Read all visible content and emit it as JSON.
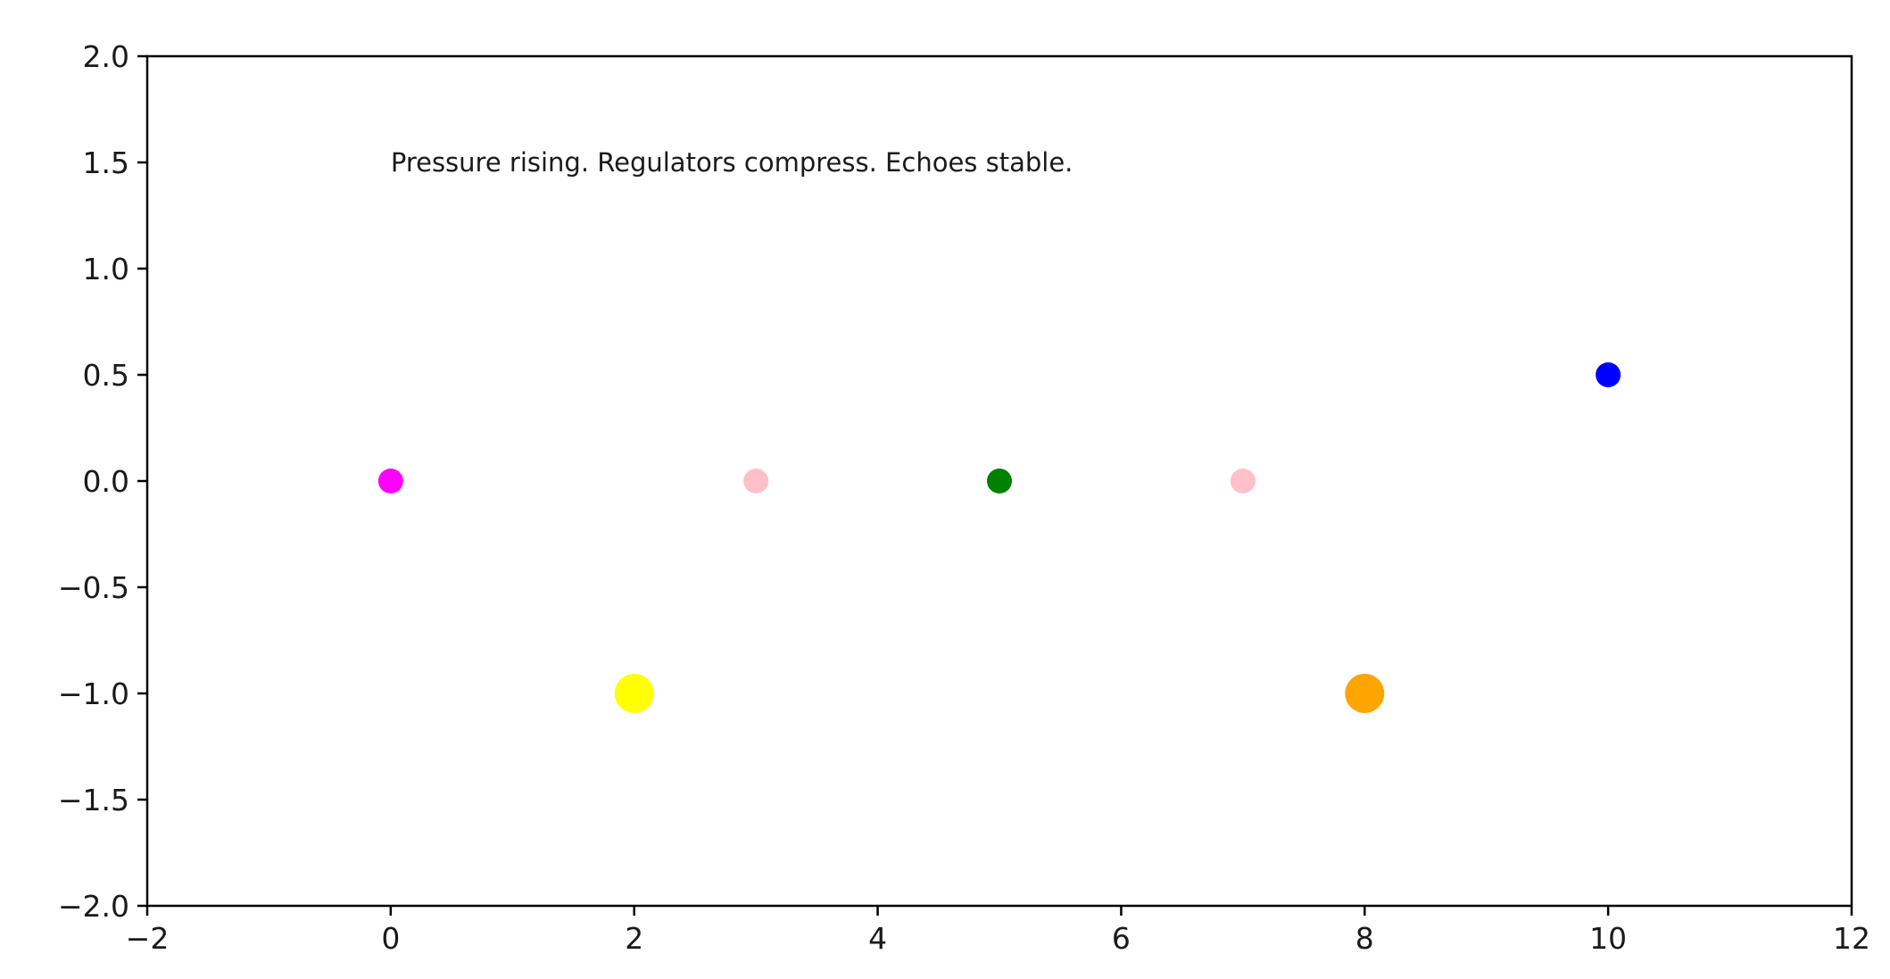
{
  "chart_data": {
    "type": "scatter",
    "title": "",
    "xlabel": "",
    "ylabel": "",
    "xlim": [
      -2,
      12
    ],
    "ylim": [
      -2.0,
      2.0
    ],
    "x_ticks": [
      -2,
      0,
      2,
      4,
      6,
      8,
      10,
      12
    ],
    "y_ticks": [
      2.0,
      1.5,
      1.0,
      0.5,
      0.0,
      -0.5,
      -1.0,
      -1.5,
      -2.0
    ],
    "x_tick_labels": [
      "−2",
      "0",
      "2",
      "4",
      "6",
      "8",
      "10",
      "12"
    ],
    "y_tick_labels": [
      "2.0",
      "1.5",
      "1.0",
      "0.5",
      "0.0",
      "−0.5",
      "−1.0",
      "−1.5",
      "−2.0"
    ],
    "grid": false,
    "legend": "none",
    "points": [
      {
        "x": 0,
        "y": 0.0,
        "color": "#ff00ff",
        "size": "small"
      },
      {
        "x": 2,
        "y": -1.0,
        "color": "#ffff00",
        "size": "large"
      },
      {
        "x": 3,
        "y": 0.0,
        "color": "#ffc0cb",
        "size": "small"
      },
      {
        "x": 5,
        "y": 0.0,
        "color": "#008000",
        "size": "small"
      },
      {
        "x": 7,
        "y": 0.0,
        "color": "#ffc0cb",
        "size": "small"
      },
      {
        "x": 8,
        "y": -1.0,
        "color": "#ffa500",
        "size": "large"
      },
      {
        "x": 10,
        "y": 0.5,
        "color": "#0000ff",
        "size": "small"
      }
    ],
    "annotations": [
      {
        "text": "Pressure rising. Regulators compress. Echoes stable.",
        "x": 0,
        "y": 1.5
      }
    ]
  }
}
